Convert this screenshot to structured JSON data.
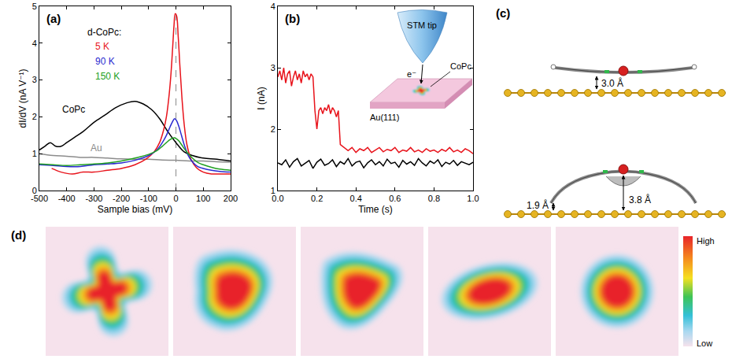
{
  "chart_data": [
    {
      "panel": "(a)",
      "type": "line",
      "xlabel": "Sample bias (mV)",
      "ylabel": "dI/dV (nA V⁻¹)",
      "xlim": [
        -500,
        200
      ],
      "xticks": [
        -500,
        -400,
        -300,
        -200,
        -100,
        0,
        100,
        200
      ],
      "ylim": [
        0,
        5
      ],
      "yticks": [
        0,
        1,
        2,
        3,
        4,
        5
      ],
      "vline": 0,
      "annotations": [
        "d-CoPc:"
      ],
      "series": [
        {
          "name": "CoPc",
          "color": "#000000",
          "x": [
            -500,
            -480,
            -460,
            -440,
            -420,
            -400,
            -370,
            -340,
            -300,
            -260,
            -220,
            -180,
            -150,
            -120,
            -90,
            -60,
            -30,
            0,
            30,
            60,
            100,
            150,
            200
          ],
          "values": [
            1.1,
            1.2,
            1.3,
            1.2,
            1.2,
            1.3,
            1.45,
            1.6,
            1.85,
            2.05,
            2.25,
            2.38,
            2.42,
            2.35,
            2.2,
            1.95,
            1.6,
            1.3,
            1.05,
            0.95,
            0.88,
            0.85,
            0.8
          ]
        },
        {
          "name": "Au",
          "color": "#8c8c8c",
          "x": [
            -500,
            -450,
            -400,
            -350,
            -300,
            -250,
            -200,
            -150,
            -100,
            -50,
            0,
            50,
            100,
            150,
            200
          ],
          "values": [
            1.0,
            0.95,
            0.93,
            0.9,
            0.9,
            0.88,
            0.86,
            0.85,
            0.85,
            0.83,
            0.82,
            0.8,
            0.8,
            0.78,
            0.77
          ]
        },
        {
          "name": "5 K",
          "color": "#e8141c",
          "x": [
            -455,
            -420,
            -380,
            -340,
            -300,
            -250,
            -200,
            -150,
            -110,
            -80,
            -60,
            -45,
            -35,
            -25,
            -18,
            -12,
            -7,
            -3,
            2,
            8,
            15,
            22,
            30,
            40,
            55,
            75,
            100,
            130,
            160,
            200
          ],
          "values": [
            0.6,
            0.5,
            0.45,
            0.5,
            0.5,
            0.55,
            0.6,
            0.7,
            0.85,
            1.05,
            1.3,
            1.65,
            2.0,
            2.6,
            3.2,
            3.9,
            4.5,
            4.8,
            4.75,
            4.2,
            3.3,
            2.5,
            1.8,
            1.25,
            0.85,
            0.62,
            0.5,
            0.45,
            0.45,
            0.45
          ]
        },
        {
          "name": "90 K",
          "color": "#2a2ad0",
          "x": [
            -500,
            -450,
            -400,
            -350,
            -300,
            -250,
            -200,
            -150,
            -100,
            -70,
            -50,
            -35,
            -22,
            -12,
            -5,
            2,
            10,
            20,
            32,
            45,
            60,
            80,
            100,
            130,
            160,
            200
          ],
          "values": [
            0.7,
            0.68,
            0.65,
            0.65,
            0.7,
            0.72,
            0.75,
            0.82,
            0.95,
            1.1,
            1.3,
            1.5,
            1.72,
            1.88,
            1.95,
            1.9,
            1.75,
            1.5,
            1.2,
            0.95,
            0.78,
            0.65,
            0.6,
            0.55,
            0.52,
            0.5
          ]
        },
        {
          "name": "150 K",
          "color": "#22a022",
          "x": [
            -500,
            -450,
            -400,
            -350,
            -300,
            -250,
            -200,
            -150,
            -100,
            -70,
            -50,
            -35,
            -22,
            -12,
            -5,
            2,
            10,
            20,
            32,
            45,
            60,
            80,
            100,
            130,
            160,
            200
          ],
          "values": [
            0.72,
            0.7,
            0.68,
            0.7,
            0.72,
            0.75,
            0.8,
            0.88,
            0.98,
            1.08,
            1.2,
            1.3,
            1.38,
            1.42,
            1.43,
            1.4,
            1.35,
            1.25,
            1.12,
            1.0,
            0.88,
            0.76,
            0.7,
            0.63,
            0.58,
            0.55
          ]
        }
      ]
    },
    {
      "panel": "(b)",
      "type": "line",
      "xlabel": "Time (s)",
      "ylabel": "I (nA)",
      "xlim": [
        0,
        1
      ],
      "xticks": [
        {
          "value": 0,
          "label": "0.0"
        },
        0.2,
        0.4,
        0.6,
        0.8,
        {
          "value": 1,
          "label": "1.0"
        }
      ],
      "ylim": [
        1,
        4
      ],
      "yticks": [
        1,
        2,
        3,
        4
      ],
      "series": [
        {
          "color": "#e8141c",
          "x": [
            0,
            0.01,
            0.02,
            0.03,
            0.04,
            0.05,
            0.06,
            0.07,
            0.08,
            0.09,
            0.1,
            0.11,
            0.12,
            0.13,
            0.14,
            0.15,
            0.16,
            0.17,
            0.18,
            0.19,
            0.2,
            0.21,
            0.22,
            0.23,
            0.24,
            0.25,
            0.26,
            0.27,
            0.28,
            0.29,
            0.3,
            0.31,
            0.32,
            0.34,
            0.36,
            0.38,
            0.4,
            0.42,
            0.44,
            0.46,
            0.48,
            0.5,
            0.52,
            0.54,
            0.56,
            0.58,
            0.6,
            0.62,
            0.64,
            0.66,
            0.68,
            0.7,
            0.72,
            0.74,
            0.76,
            0.78,
            0.8,
            0.82,
            0.84,
            0.86,
            0.88,
            0.9,
            0.92,
            0.94,
            0.96,
            0.98,
            1.0
          ],
          "values": [
            2.85,
            2.95,
            2.8,
            3.0,
            2.75,
            2.9,
            2.95,
            2.7,
            2.85,
            2.95,
            2.8,
            2.9,
            2.75,
            2.95,
            2.85,
            2.9,
            2.8,
            2.9,
            2.85,
            2.3,
            2.0,
            2.3,
            2.35,
            2.25,
            2.35,
            2.3,
            2.4,
            2.25,
            2.35,
            2.3,
            2.2,
            2.3,
            1.75,
            1.7,
            1.65,
            1.7,
            1.62,
            1.68,
            1.65,
            1.7,
            1.62,
            1.66,
            1.7,
            1.63,
            1.67,
            1.65,
            1.7,
            1.62,
            1.66,
            1.64,
            1.7,
            1.63,
            1.66,
            1.62,
            1.68,
            1.64,
            1.66,
            1.62,
            1.67,
            1.64,
            1.7,
            1.63,
            1.66,
            1.62,
            1.68,
            1.65,
            1.6
          ]
        },
        {
          "color": "#000000",
          "x": [
            0,
            0.02,
            0.04,
            0.06,
            0.08,
            0.1,
            0.12,
            0.14,
            0.16,
            0.18,
            0.2,
            0.22,
            0.24,
            0.26,
            0.28,
            0.3,
            0.32,
            0.34,
            0.36,
            0.38,
            0.4,
            0.42,
            0.44,
            0.46,
            0.48,
            0.5,
            0.52,
            0.54,
            0.56,
            0.58,
            0.6,
            0.62,
            0.64,
            0.66,
            0.68,
            0.7,
            0.72,
            0.74,
            0.76,
            0.78,
            0.8,
            0.82,
            0.84,
            0.86,
            0.88,
            0.9,
            0.92,
            0.94,
            0.96,
            0.98,
            1.0
          ],
          "values": [
            1.45,
            1.42,
            1.5,
            1.38,
            1.47,
            1.52,
            1.4,
            1.45,
            1.49,
            1.36,
            1.46,
            1.51,
            1.41,
            1.44,
            1.5,
            1.39,
            1.47,
            1.43,
            1.52,
            1.4,
            1.46,
            1.48,
            1.37,
            1.45,
            1.5,
            1.42,
            1.47,
            1.4,
            1.51,
            1.44,
            1.46,
            1.38,
            1.49,
            1.43,
            1.47,
            1.41,
            1.52,
            1.45,
            1.4,
            1.48,
            1.44,
            1.5,
            1.39,
            1.46,
            1.43,
            1.49,
            1.41,
            1.47,
            1.44,
            1.42,
            1.46
          ]
        }
      ]
    }
  ],
  "inset": {
    "tip": "STM tip",
    "electron": "e⁻",
    "molecule": "CoPc",
    "substrate": "Au(111)"
  },
  "diagram": {
    "panel": "(c)",
    "flat": {
      "height": "3.0 Å"
    },
    "distorted": {
      "edge": "1.9 Å",
      "center": "3.8 Å"
    }
  },
  "images": {
    "panel": "(d)",
    "colorbar": {
      "high": "High",
      "low": "Low"
    }
  }
}
